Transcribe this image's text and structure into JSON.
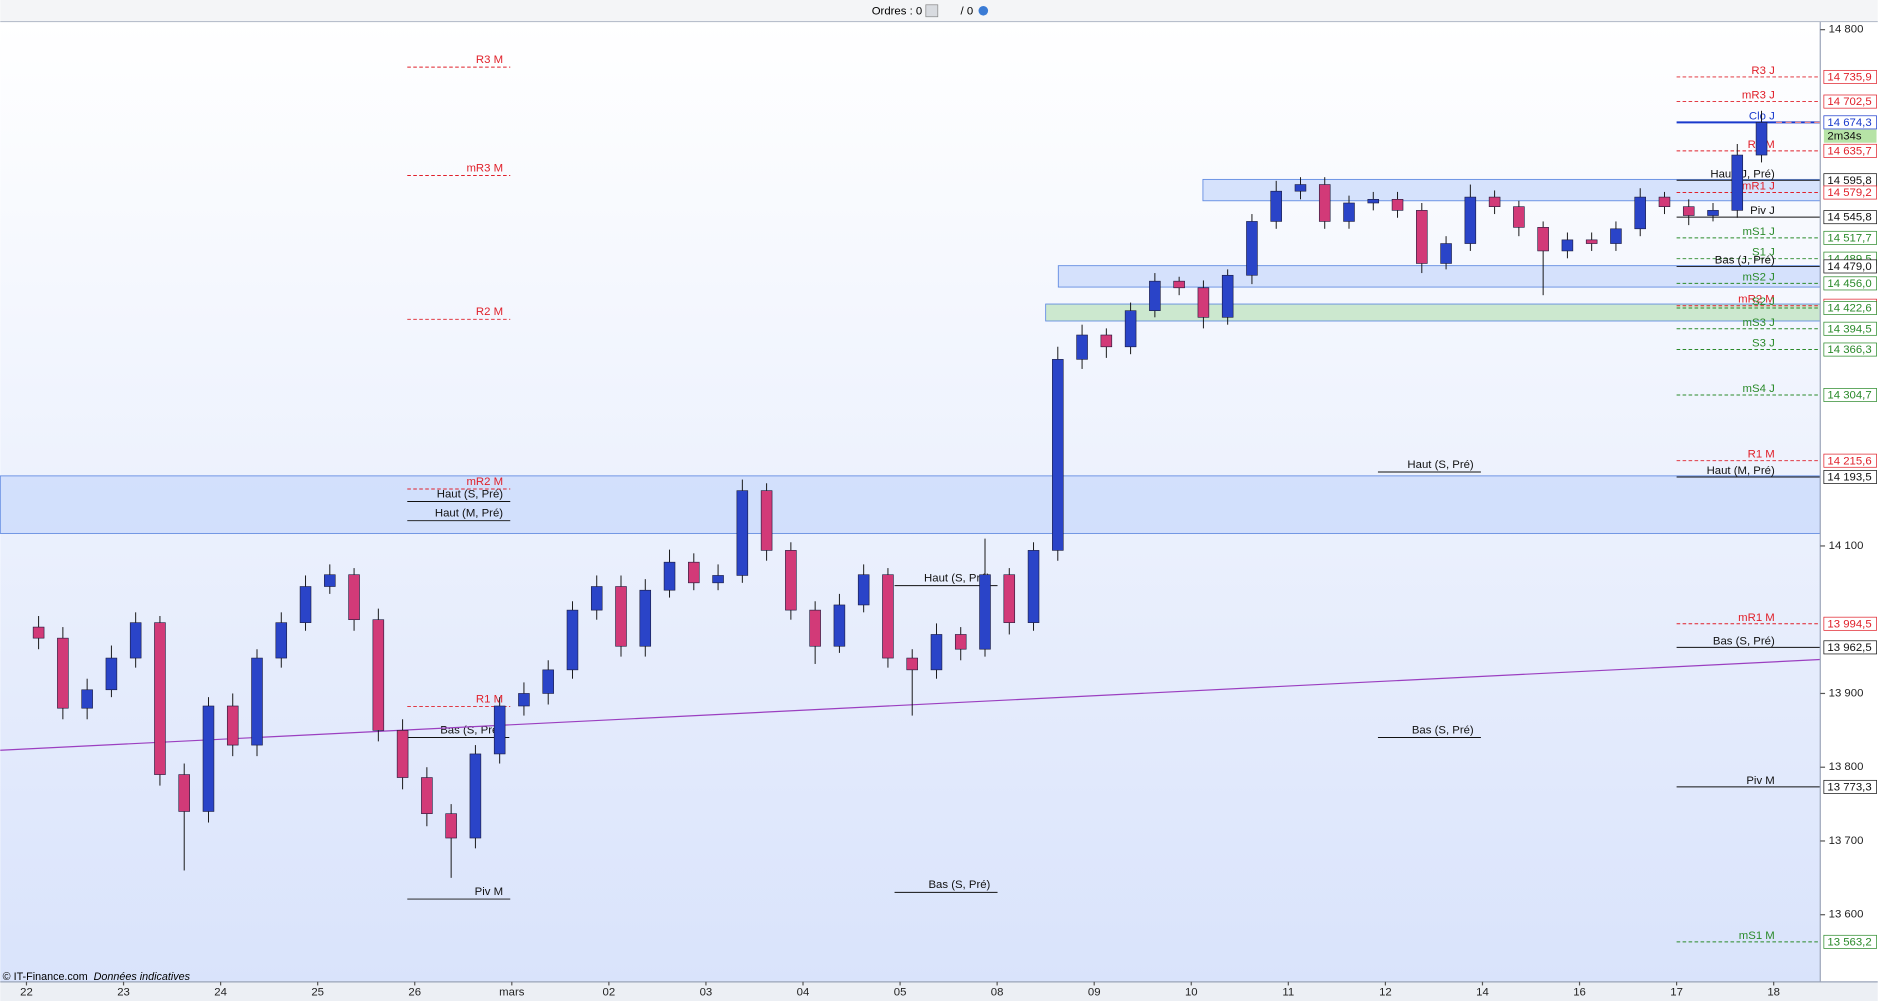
{
  "chart_data": {
    "type": "candlestick",
    "toolbar": {
      "orders": "Ordres : 0",
      "orders_total": "/ 0"
    },
    "credit": "© IT-Finance.com",
    "credit_note": "Données indicatives",
    "timer": "2m34s",
    "xlim": [
      -0.27,
      18.48
    ],
    "ylim": [
      13509,
      14811
    ],
    "xticks": [
      {
        "value": 0,
        "label": "22"
      },
      {
        "value": 1,
        "label": "23"
      },
      {
        "value": 2,
        "label": "24"
      },
      {
        "value": 3,
        "label": "25"
      },
      {
        "value": 4,
        "label": "26"
      },
      {
        "value": 5,
        "label": "mars"
      },
      {
        "value": 6,
        "label": "02"
      },
      {
        "value": 7,
        "label": "03"
      },
      {
        "value": 8,
        "label": "04"
      },
      {
        "value": 9,
        "label": "05"
      },
      {
        "value": 10,
        "label": "08"
      },
      {
        "value": 11,
        "label": "09"
      },
      {
        "value": 12,
        "label": "10"
      },
      {
        "value": 13,
        "label": "11"
      },
      {
        "value": 14,
        "label": "12"
      },
      {
        "value": 15,
        "label": "14"
      },
      {
        "value": 16,
        "label": "16"
      },
      {
        "value": 17,
        "label": "17"
      },
      {
        "value": 18,
        "label": "18"
      }
    ],
    "yticks": [
      {
        "value": 14800,
        "label": "14 800"
      },
      {
        "value": 14100,
        "label": "14 100"
      },
      {
        "value": 13900,
        "label": "13 900"
      },
      {
        "value": 13800,
        "label": "13 800"
      },
      {
        "value": 13700,
        "label": "13 700"
      },
      {
        "value": 13600,
        "label": "13 600"
      }
    ],
    "up_color": "#2a44c8",
    "down_color": "#d23a78",
    "x": [
      0.125,
      0.375,
      0.625,
      0.875,
      1.125,
      1.375,
      1.625,
      1.875,
      2.125,
      2.375,
      2.625,
      2.875,
      3.125,
      3.375,
      3.625,
      3.875,
      4.125,
      4.375,
      4.625,
      4.875,
      5.125,
      5.375,
      5.625,
      5.875,
      6.125,
      6.375,
      6.625,
      6.875,
      7.125,
      7.375,
      7.625,
      7.875,
      8.125,
      8.375,
      8.625,
      8.875,
      9.125,
      9.375,
      9.625,
      9.875,
      10.125,
      10.375,
      10.625,
      10.875,
      11.125,
      11.375,
      11.625,
      11.875,
      12.125,
      12.375,
      12.625,
      12.875,
      13.125,
      13.375,
      13.625,
      13.875,
      14.125,
      14.375,
      14.625,
      14.875,
      15.125,
      15.375,
      15.625,
      15.875,
      16.125,
      16.375,
      16.625,
      16.875,
      17.125,
      17.375,
      17.625,
      17.875
    ],
    "open": [
      13990,
      13975,
      13880,
      13905,
      13948,
      13996,
      13790,
      13740,
      13883,
      13830,
      13948,
      13996,
      14045,
      14061,
      14000,
      13850,
      13786,
      13737,
      13704,
      13818,
      13883,
      13900,
      13932,
      14013,
      14045,
      13964,
      14040,
      14078,
      14050,
      14060,
      14175,
      14094,
      14013,
      13964,
      14020,
      14061,
      13948,
      13932,
      13980,
      13960,
      14061,
      13996,
      14094,
      14353,
      14386,
      14370,
      14419,
      14459,
      14450,
      14410,
      14467,
      14540,
      14581,
      14590,
      14540,
      14565,
      14570,
      14555,
      14483,
      14510,
      14573,
      14560,
      14532,
      14500,
      14515,
      14510,
      14530,
      14573,
      14560,
      14548,
      14555,
      14630
    ],
    "high": [
      14005,
      13990,
      13920,
      13965,
      14010,
      14005,
      13805,
      13895,
      13900,
      13960,
      14010,
      14060,
      14075,
      14070,
      14015,
      13865,
      13800,
      13750,
      13830,
      13895,
      13915,
      13945,
      14025,
      14060,
      14060,
      14055,
      14095,
      14090,
      14075,
      14190,
      14185,
      14105,
      14025,
      14035,
      14075,
      14070,
      13960,
      13995,
      13990,
      14110,
      14070,
      14105,
      14370,
      14400,
      14395,
      14430,
      14470,
      14465,
      14460,
      14475,
      14550,
      14595,
      14600,
      14600,
      14575,
      14580,
      14580,
      14565,
      14520,
      14590,
      14582,
      14568,
      14540,
      14525,
      14525,
      14540,
      14585,
      14580,
      14570,
      14565,
      14645,
      14690
    ],
    "low": [
      13960,
      13865,
      13865,
      13895,
      13935,
      13775,
      13660,
      13725,
      13815,
      13815,
      13935,
      13985,
      14035,
      13985,
      13835,
      13770,
      13720,
      13650,
      13690,
      13805,
      13870,
      13885,
      13920,
      14000,
      13950,
      13950,
      14030,
      14040,
      14040,
      14050,
      14080,
      14000,
      13940,
      13955,
      14010,
      13935,
      13870,
      13920,
      13945,
      13950,
      13980,
      13985,
      14080,
      14340,
      14355,
      14360,
      14410,
      14440,
      14395,
      14400,
      14455,
      14530,
      14570,
      14530,
      14530,
      14555,
      14545,
      14470,
      14475,
      14500,
      14550,
      14520,
      14440,
      14490,
      14500,
      14500,
      14520,
      14550,
      14535,
      14540,
      14545,
      14620
    ],
    "close": [
      13975,
      13880,
      13905,
      13948,
      13996,
      13790,
      13740,
      13883,
      13830,
      13948,
      13996,
      14045,
      14061,
      14000,
      13850,
      13786,
      13737,
      13704,
      13818,
      13883,
      13900,
      13932,
      14013,
      14045,
      13964,
      14040,
      14078,
      14050,
      14060,
      14175,
      14094,
      14013,
      13964,
      14020,
      14061,
      13948,
      13932,
      13980,
      13960,
      14061,
      13996,
      14094,
      14353,
      14386,
      14370,
      14419,
      14459,
      14450,
      14410,
      14467,
      14540,
      14581,
      14590,
      14540,
      14565,
      14570,
      14555,
      14483,
      14510,
      14573,
      14560,
      14532,
      14500,
      14515,
      14510,
      14530,
      14573,
      14560,
      14548,
      14555,
      14630,
      14674.3
    ],
    "trendline": {
      "color": "#9b3fc0",
      "x": [
        -0.27,
        18.48
      ],
      "y": [
        13823,
        13946
      ]
    },
    "zones": [
      {
        "x0": -0.27,
        "y": [
          14117,
          14195
        ],
        "color": "#c9d9fb"
      },
      {
        "x0": 10.63,
        "y": [
          14451,
          14480
        ],
        "color": "#c9d9fb"
      },
      {
        "x0": 12.12,
        "y": [
          14568,
          14597
        ],
        "color": "#c9d9fb"
      },
      {
        "x0": 10.5,
        "y": [
          14405,
          14428
        ],
        "color": "#bfe3bf"
      }
    ],
    "levels": [
      {
        "name": "R3 J",
        "value": 14735.9,
        "value_label": "14 735,9",
        "color": "#e0202a"
      },
      {
        "name": "mR3 J",
        "value": 14702.5,
        "value_label": "14 702,5",
        "color": "#e0202a"
      },
      {
        "name": "Clo J",
        "value": 14674.3,
        "value_label": "14 674,3",
        "color": "#1a3acc"
      },
      {
        "name": "R2 M",
        "value": 14635.7,
        "value_label": "14 635,7",
        "color": "#e0202a"
      },
      {
        "name": "Haut (J, Pré)",
        "value": 14595.8,
        "value_label": "14 595,8",
        "color": "#111111"
      },
      {
        "name": "mR1 J",
        "value": 14579.2,
        "value_label": "14 579,2",
        "color": "#e0202a"
      },
      {
        "name": "Piv J",
        "value": 14545.8,
        "value_label": "14 545,8",
        "color": "#111111"
      },
      {
        "name": "mS1 J",
        "value": 14517.7,
        "value_label": "14 517,7",
        "color": "#2a8a2a"
      },
      {
        "name": "S1 J",
        "value": 14489.5,
        "value_label": "14 489,5",
        "color": "#2a8a2a"
      },
      {
        "name": "Bas (J, Pré)",
        "value": 14479.0,
        "value_label": "14 479,0",
        "color": "#111111"
      },
      {
        "name": "mS2 J",
        "value": 14456.0,
        "value_label": "14 456,0",
        "color": "#2a8a2a"
      },
      {
        "name": "mR2 M",
        "value": 14425.7,
        "value_label": "14 425,7",
        "color": "#e0202a"
      },
      {
        "name": "S2 J",
        "value": 14422.6,
        "value_label": "14 422,6",
        "color": "#2a8a2a"
      },
      {
        "name": "mS3 J",
        "value": 14394.5,
        "value_label": "14 394,5",
        "color": "#2a8a2a"
      },
      {
        "name": "S3 J",
        "value": 14366.3,
        "value_label": "14 366,3",
        "color": "#2a8a2a"
      },
      {
        "name": "mS4 J",
        "value": 14304.7,
        "value_label": "14 304,7",
        "color": "#2a8a2a"
      },
      {
        "name": "R1 M",
        "value": 14215.6,
        "value_label": "14 215,6",
        "color": "#e0202a"
      },
      {
        "name": "Haut (M, Pré)",
        "value": 14193.5,
        "value_label": "14 193,5",
        "color": "#111111"
      },
      {
        "name": "mR1 M",
        "value": 13994.5,
        "value_label": "13 994,5",
        "color": "#e0202a"
      },
      {
        "name": "Bas (S, Pré)",
        "value": 13962.5,
        "value_label": "13 962,5",
        "color": "#111111"
      },
      {
        "name": "Piv M",
        "value": 13773.3,
        "value_label": "13 773,3",
        "color": "#111111"
      },
      {
        "name": "mS1 M",
        "value": 13563.2,
        "value_label": "13 563,2",
        "color": "#2a8a2a"
      }
    ],
    "annotations": [
      {
        "text": "R3 M",
        "x": 4.91,
        "y": 14759,
        "color": "#e0202a"
      },
      {
        "text": "mR3 M",
        "x": 4.91,
        "y": 14612,
        "color": "#e0202a"
      },
      {
        "text": "R2 M",
        "x": 4.91,
        "y": 14417,
        "color": "#e0202a"
      },
      {
        "text": "mR2 M",
        "x": 4.91,
        "y": 14187,
        "color": "#e0202a"
      },
      {
        "text": "Haut (S, Pré)",
        "x": 4.91,
        "y": 14170,
        "color": "#111111"
      },
      {
        "text": "Haut (M, Pré)",
        "x": 4.91,
        "y": 14144,
        "color": "#111111"
      },
      {
        "text": "R1 M",
        "x": 4.91,
        "y": 13892,
        "color": "#e0202a"
      },
      {
        "text": "Bas (S, Pré)",
        "x": 4.9,
        "y": 13850,
        "color": "#111111"
      },
      {
        "text": "Piv M",
        "x": 4.91,
        "y": 13631,
        "color": "#111111"
      },
      {
        "text": "Haut (S, Pré)",
        "x": 9.93,
        "y": 14056,
        "color": "#111111"
      },
      {
        "text": "Bas (S, Pré)",
        "x": 9.93,
        "y": 13640,
        "color": "#111111"
      },
      {
        "text": "Haut (S, Pré)",
        "x": 14.91,
        "y": 14210,
        "color": "#111111"
      },
      {
        "text": "Bas (S, Pré)",
        "x": 14.91,
        "y": 13850,
        "color": "#111111"
      }
    ]
  }
}
